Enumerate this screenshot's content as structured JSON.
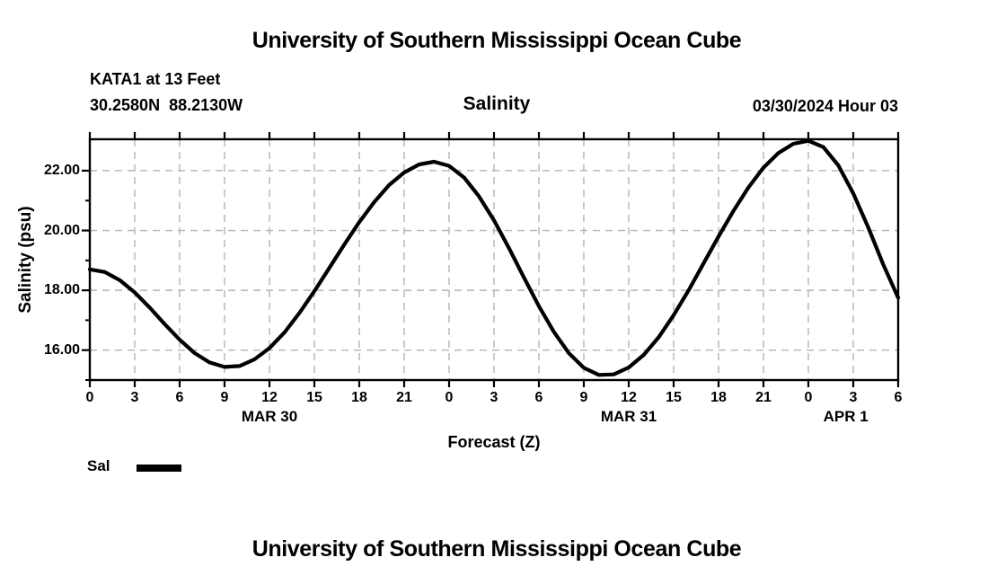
{
  "header": {
    "title": "University of Southern Mississippi Ocean Cube",
    "station_line": "KATA1 at 13 Feet",
    "coords_line": "30.2580N  88.2130W",
    "plot_title": "Salinity",
    "datetime_label": "03/30/2024 Hour 03"
  },
  "footer": {
    "title": "University of Southern Mississippi Ocean Cube"
  },
  "legend": {
    "label": "Sal",
    "swatch_color": "#000000"
  },
  "colors": {
    "background": "#ffffff",
    "text": "#000000",
    "frame": "#000000",
    "grid": "#b4b4b4",
    "curve": "#000000"
  },
  "chart_data": {
    "type": "line",
    "title": "Salinity",
    "xlabel": "Forecast (Z)",
    "ylabel": "Salinity (psu)",
    "xlim": [
      0,
      54
    ],
    "ylim": [
      15.0,
      23.05
    ],
    "grid": "dashed",
    "legend_position": "bottom-left",
    "x_tick_hours": [
      0,
      3,
      6,
      9,
      12,
      15,
      18,
      21,
      24,
      27,
      30,
      33,
      36,
      39,
      42,
      45,
      48,
      51,
      54
    ],
    "x_tick_labels": [
      "0",
      "3",
      "6",
      "9",
      "12",
      "15",
      "18",
      "21",
      "0",
      "3",
      "6",
      "9",
      "12",
      "15",
      "18",
      "21",
      "0",
      "3",
      "6"
    ],
    "y_major_ticks": [
      16,
      18,
      20,
      22
    ],
    "y_major_tick_labels": [
      "16.00",
      "18.00",
      "20.00",
      "22.00"
    ],
    "y_minor_ticks": [
      15,
      17,
      19,
      21
    ],
    "date_labels": [
      {
        "label": "MAR 30",
        "hour": 12
      },
      {
        "label": "MAR 31",
        "hour": 36
      },
      {
        "label": "APR 1",
        "hour": 50.5
      }
    ],
    "series": [
      {
        "name": "Sal",
        "x": [
          0,
          1,
          2,
          3,
          4,
          5,
          6,
          7,
          8,
          9,
          10,
          11,
          12,
          13,
          14,
          15,
          16,
          17,
          18,
          19,
          20,
          21,
          22,
          23,
          24,
          25,
          26,
          27,
          28,
          29,
          30,
          31,
          32,
          33,
          34,
          35,
          36,
          37,
          38,
          39,
          40,
          41,
          42,
          43,
          44,
          45,
          46,
          47,
          48,
          49,
          50,
          51,
          52,
          53,
          54
        ],
        "y": [
          18.7,
          18.61,
          18.34,
          17.93,
          17.42,
          16.87,
          16.35,
          15.9,
          15.59,
          15.44,
          15.47,
          15.69,
          16.07,
          16.59,
          17.24,
          17.97,
          18.75,
          19.53,
          20.28,
          20.95,
          21.52,
          21.94,
          22.21,
          22.3,
          22.16,
          21.77,
          21.14,
          20.34,
          19.41,
          18.43,
          17.47,
          16.61,
          15.9,
          15.41,
          15.17,
          15.19,
          15.42,
          15.84,
          16.43,
          17.17,
          18.0,
          18.9,
          19.8,
          20.66,
          21.44,
          22.1,
          22.59,
          22.9,
          23.0,
          22.79,
          22.18,
          21.24,
          20.1,
          18.87,
          17.75
        ]
      }
    ]
  }
}
